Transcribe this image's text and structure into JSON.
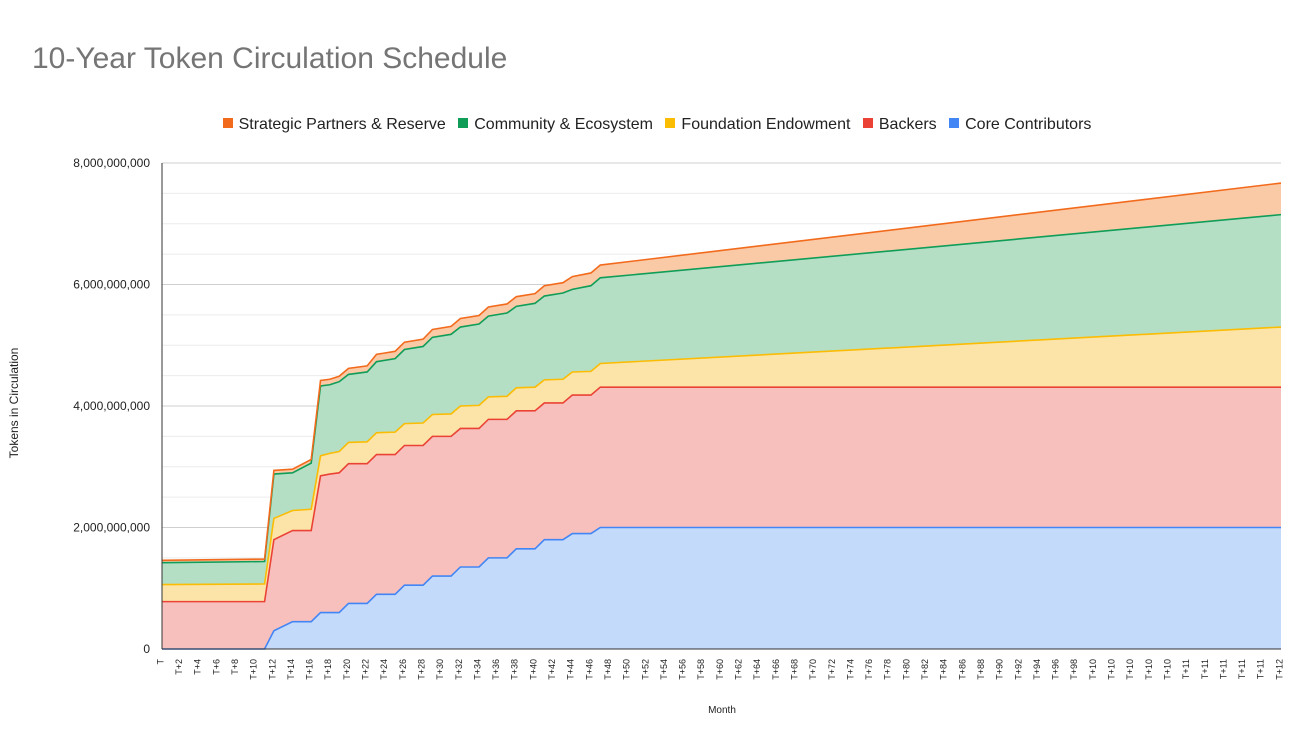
{
  "chart_data": {
    "type": "area",
    "stacked": true,
    "title": "10-Year Token Circulation Schedule",
    "xlabel": "Month",
    "ylabel": "Tokens in Circulation",
    "ylim": [
      0,
      8000000000
    ],
    "yticks": [
      "0",
      "2,000,000,000",
      "4,000,000,000",
      "6,000,000,000",
      "8,000,000,000"
    ],
    "ytick_values": [
      0,
      2000000000,
      4000000000,
      6000000000,
      8000000000
    ],
    "xticks": [
      "T",
      "T+2",
      "T+4",
      "T+6",
      "T+8",
      "T+10",
      "T+12",
      "T+14",
      "T+16",
      "T+18",
      "T+20",
      "T+22",
      "T+24",
      "T+26",
      "T+28",
      "T+30",
      "T+32",
      "T+34",
      "T+36",
      "T+38",
      "T+40",
      "T+42",
      "T+44",
      "T+46",
      "T+48",
      "T+50",
      "T+52",
      "T+54",
      "T+56",
      "T+58",
      "T+60",
      "T+62",
      "T+64",
      "T+66",
      "T+68",
      "T+70",
      "T+72",
      "T+74",
      "T+76",
      "T+78",
      "T+80",
      "T+82",
      "T+84",
      "T+86",
      "T+88",
      "T+90",
      "T+92",
      "T+94",
      "T+96",
      "T+98",
      "T+10",
      "T+10",
      "T+10",
      "T+10",
      "T+10",
      "T+11",
      "T+11",
      "T+11",
      "T+11",
      "T+11",
      "T+12"
    ],
    "xrange_months": [
      0,
      120
    ],
    "legend": [
      {
        "name": "Strategic Partners & Reserve",
        "color": "#f26b1d"
      },
      {
        "name": "Community & Ecosystem",
        "color": "#0f9d58"
      },
      {
        "name": "Foundation Endowment",
        "color": "#fbbc04"
      },
      {
        "name": "Backers",
        "color": "#ea4335"
      },
      {
        "name": "Core Contributors",
        "color": "#4285f4"
      }
    ],
    "series": [
      {
        "name": "Core Contributors",
        "color": "#4285f4",
        "fill": "#c4dafb",
        "points": [
          [
            0,
            0
          ],
          [
            11,
            0
          ],
          [
            12,
            300000000
          ],
          [
            14,
            450000000
          ],
          [
            16,
            450000000
          ],
          [
            17,
            600000000
          ],
          [
            18,
            600000000
          ],
          [
            19,
            600000000
          ],
          [
            20,
            750000000
          ],
          [
            22,
            750000000
          ],
          [
            23,
            900000000
          ],
          [
            25,
            900000000
          ],
          [
            26,
            1050000000
          ],
          [
            28,
            1050000000
          ],
          [
            29,
            1200000000
          ],
          [
            31,
            1200000000
          ],
          [
            32,
            1350000000
          ],
          [
            34,
            1350000000
          ],
          [
            35,
            1500000000
          ],
          [
            37,
            1500000000
          ],
          [
            38,
            1650000000
          ],
          [
            40,
            1650000000
          ],
          [
            41,
            1800000000
          ],
          [
            43,
            1800000000
          ],
          [
            44,
            1900000000
          ],
          [
            46,
            1900000000
          ],
          [
            47,
            2000000000
          ],
          [
            120,
            2000000000
          ]
        ]
      },
      {
        "name": "Backers",
        "color": "#ea4335",
        "fill": "#f8c0bd",
        "points": [
          [
            0,
            780000000
          ],
          [
            11,
            780000000
          ],
          [
            12,
            1800000000
          ],
          [
            14,
            1950000000
          ],
          [
            16,
            1950000000
          ],
          [
            17,
            2850000000
          ],
          [
            18,
            2880000000
          ],
          [
            19,
            2900000000
          ],
          [
            20,
            3050000000
          ],
          [
            22,
            3050000000
          ],
          [
            23,
            3200000000
          ],
          [
            25,
            3200000000
          ],
          [
            26,
            3350000000
          ],
          [
            28,
            3350000000
          ],
          [
            29,
            3500000000
          ],
          [
            31,
            3500000000
          ],
          [
            32,
            3630000000
          ],
          [
            34,
            3630000000
          ],
          [
            35,
            3780000000
          ],
          [
            37,
            3780000000
          ],
          [
            38,
            3920000000
          ],
          [
            40,
            3920000000
          ],
          [
            41,
            4050000000
          ],
          [
            43,
            4050000000
          ],
          [
            44,
            4180000000
          ],
          [
            46,
            4180000000
          ],
          [
            47,
            4310000000
          ],
          [
            120,
            4310000000
          ]
        ]
      },
      {
        "name": "Foundation Endowment",
        "color": "#fbbc04",
        "fill": "#fce4a8",
        "points": [
          [
            0,
            1060000000
          ],
          [
            11,
            1070000000
          ],
          [
            12,
            2150000000
          ],
          [
            14,
            2280000000
          ],
          [
            16,
            2300000000
          ],
          [
            17,
            3180000000
          ],
          [
            18,
            3220000000
          ],
          [
            19,
            3250000000
          ],
          [
            20,
            3400000000
          ],
          [
            22,
            3410000000
          ],
          [
            23,
            3560000000
          ],
          [
            25,
            3570000000
          ],
          [
            26,
            3710000000
          ],
          [
            28,
            3720000000
          ],
          [
            29,
            3860000000
          ],
          [
            31,
            3870000000
          ],
          [
            32,
            4000000000
          ],
          [
            34,
            4010000000
          ],
          [
            35,
            4150000000
          ],
          [
            37,
            4160000000
          ],
          [
            38,
            4300000000
          ],
          [
            40,
            4310000000
          ],
          [
            41,
            4430000000
          ],
          [
            43,
            4440000000
          ],
          [
            44,
            4560000000
          ],
          [
            46,
            4570000000
          ],
          [
            47,
            4700000000
          ],
          [
            120,
            5300000000
          ]
        ]
      },
      {
        "name": "Community & Ecosystem",
        "color": "#0f9d58",
        "fill": "#b5dfc4",
        "points": [
          [
            0,
            1420000000
          ],
          [
            11,
            1440000000
          ],
          [
            12,
            2880000000
          ],
          [
            14,
            2900000000
          ],
          [
            16,
            3060000000
          ],
          [
            17,
            4330000000
          ],
          [
            18,
            4350000000
          ],
          [
            19,
            4400000000
          ],
          [
            20,
            4520000000
          ],
          [
            22,
            4560000000
          ],
          [
            23,
            4730000000
          ],
          [
            25,
            4780000000
          ],
          [
            26,
            4930000000
          ],
          [
            28,
            4980000000
          ],
          [
            29,
            5130000000
          ],
          [
            31,
            5180000000
          ],
          [
            32,
            5300000000
          ],
          [
            34,
            5350000000
          ],
          [
            35,
            5480000000
          ],
          [
            37,
            5530000000
          ],
          [
            38,
            5640000000
          ],
          [
            40,
            5690000000
          ],
          [
            41,
            5810000000
          ],
          [
            43,
            5860000000
          ],
          [
            44,
            5920000000
          ],
          [
            46,
            5980000000
          ],
          [
            47,
            6110000000
          ],
          [
            120,
            7150000000
          ]
        ]
      },
      {
        "name": "Strategic Partners & Reserve",
        "color": "#f26b1d",
        "fill": "#fac9a6",
        "points": [
          [
            0,
            1460000000
          ],
          [
            11,
            1480000000
          ],
          [
            12,
            2940000000
          ],
          [
            14,
            2960000000
          ],
          [
            16,
            3120000000
          ],
          [
            17,
            4420000000
          ],
          [
            18,
            4440000000
          ],
          [
            19,
            4490000000
          ],
          [
            20,
            4620000000
          ],
          [
            22,
            4660000000
          ],
          [
            23,
            4850000000
          ],
          [
            25,
            4900000000
          ],
          [
            26,
            5050000000
          ],
          [
            28,
            5100000000
          ],
          [
            29,
            5260000000
          ],
          [
            31,
            5310000000
          ],
          [
            32,
            5440000000
          ],
          [
            34,
            5490000000
          ],
          [
            35,
            5630000000
          ],
          [
            37,
            5680000000
          ],
          [
            38,
            5800000000
          ],
          [
            40,
            5850000000
          ],
          [
            41,
            5980000000
          ],
          [
            43,
            6030000000
          ],
          [
            44,
            6130000000
          ],
          [
            46,
            6190000000
          ],
          [
            47,
            6320000000
          ],
          [
            120,
            7670000000
          ]
        ]
      }
    ]
  }
}
